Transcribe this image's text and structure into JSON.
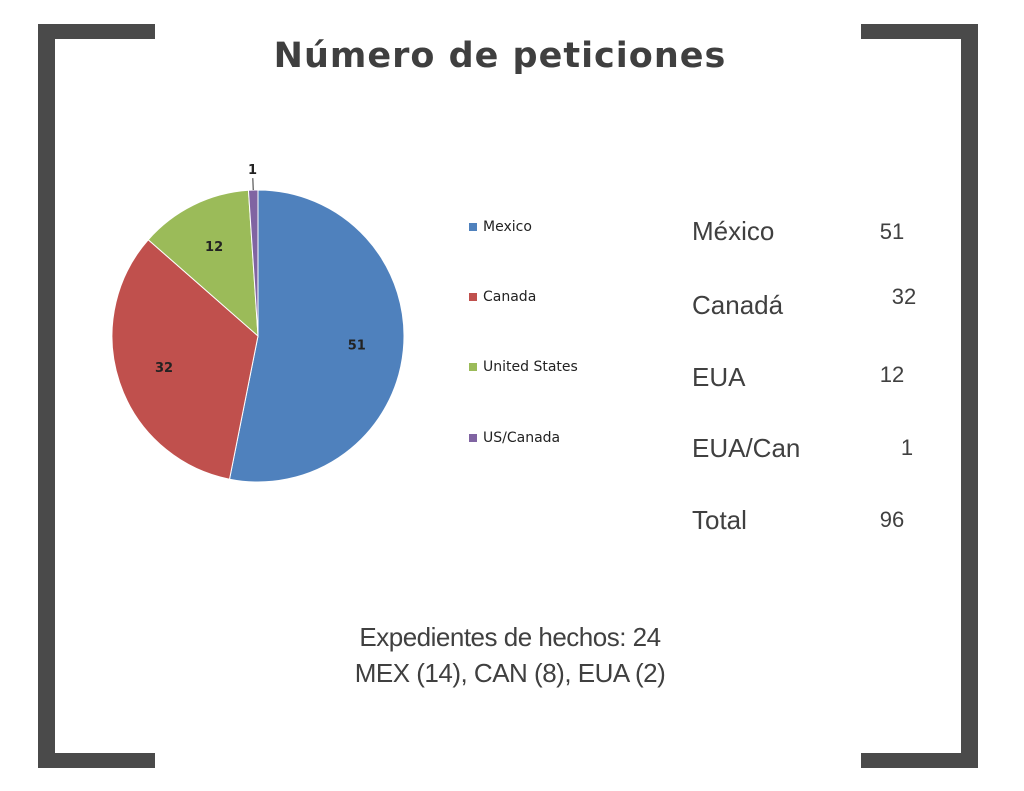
{
  "title": "Número de peticiones",
  "chart_data": {
    "type": "pie",
    "categories": [
      "Mexico",
      "Canada",
      "United States",
      "US/Canada"
    ],
    "values": [
      51,
      32,
      12,
      1
    ],
    "data_labels": [
      "51",
      "32",
      "12",
      "1"
    ],
    "colors": [
      "#4f81bd",
      "#c0504d",
      "#9bbb59",
      "#8064a2"
    ],
    "legend_position": "right"
  },
  "table": {
    "rows": [
      {
        "label": "México",
        "value": "51"
      },
      {
        "label": "Canadá",
        "value": "32"
      },
      {
        "label": "EUA",
        "value": "12"
      },
      {
        "label": "EUA/Can",
        "value": "1"
      },
      {
        "label": "Total",
        "value": "96"
      }
    ]
  },
  "footer": {
    "line1": "Expedientes de hechos: 24",
    "line2": "MEX (14), CAN (8), EUA (2)"
  }
}
